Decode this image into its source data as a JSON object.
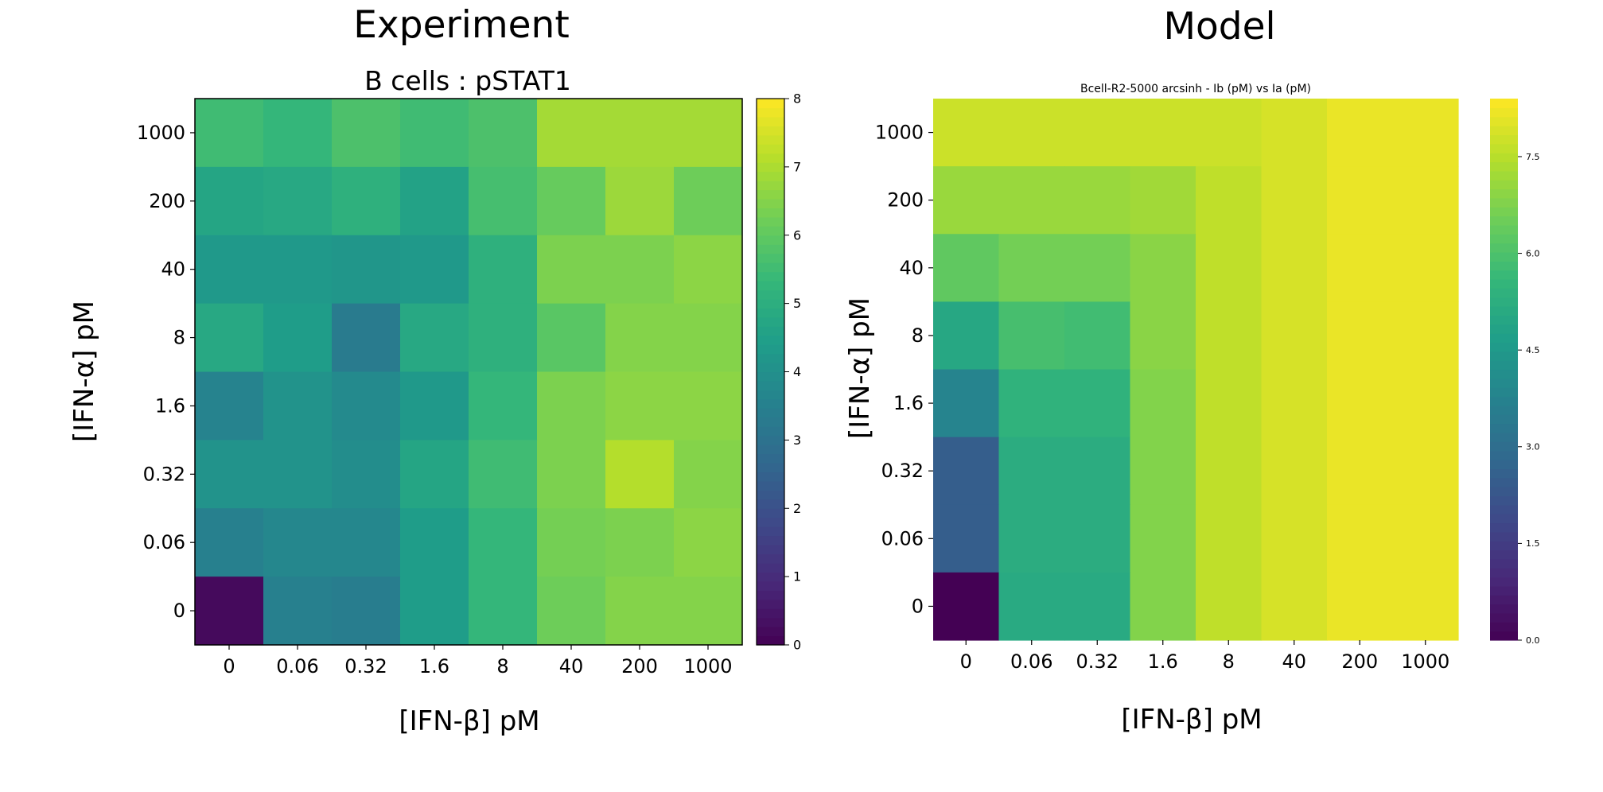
{
  "panels": [
    {
      "heading": "Experiment"
    },
    {
      "heading": "Model"
    }
  ],
  "colormap": "viridis",
  "chart_data": [
    {
      "type": "heatmap",
      "title": "B cells : pSTAT1",
      "xlabel": "[IFN-β] pM",
      "ylabel": "[IFN-α] pM",
      "x_categories": [
        "0",
        "0.06",
        "0.32",
        "1.6",
        "8",
        "40",
        "200",
        "1000"
      ],
      "y_categories": [
        "1000",
        "200",
        "40",
        "8",
        "1.6",
        "0.32",
        "0.06",
        "0"
      ],
      "values": [
        [
          5.5,
          5.3,
          5.7,
          5.5,
          5.7,
          6.9,
          6.9,
          6.9
        ],
        [
          4.7,
          4.8,
          5.1,
          4.6,
          5.6,
          6.1,
          6.8,
          6.2
        ],
        [
          4.3,
          4.3,
          4.2,
          4.3,
          5.1,
          6.4,
          6.4,
          6.6
        ],
        [
          4.8,
          4.4,
          3.3,
          4.8,
          5.1,
          5.9,
          6.5,
          6.5
        ],
        [
          3.6,
          4.1,
          3.8,
          4.3,
          5.3,
          6.4,
          6.6,
          6.6
        ],
        [
          4.1,
          4.1,
          3.9,
          4.7,
          5.5,
          6.4,
          7.1,
          6.5
        ],
        [
          3.5,
          3.7,
          3.7,
          4.4,
          5.3,
          6.3,
          6.4,
          6.6
        ],
        [
          0.2,
          3.5,
          3.4,
          4.4,
          5.3,
          6.2,
          6.5,
          6.5
        ]
      ],
      "colorbar": {
        "min": 0,
        "max": 8,
        "ticks": [
          "0",
          "1",
          "2",
          "3",
          "4",
          "5",
          "6",
          "7",
          "8"
        ]
      }
    },
    {
      "type": "heatmap",
      "title": "Bcell-R2-5000 arcsinh - Ib (pM) vs Ia (pM)",
      "xlabel": "[IFN-β] pM",
      "ylabel": "[IFN-α] pM",
      "x_categories": [
        "0",
        "0.06",
        "0.32",
        "1.6",
        "8",
        "40",
        "200",
        "1000"
      ],
      "y_categories": [
        "1000",
        "200",
        "40",
        "8",
        "1.6",
        "0.32",
        "0.06",
        "0"
      ],
      "values": [
        [
          7.75,
          7.75,
          7.75,
          7.75,
          7.75,
          7.9,
          8.15,
          8.15
        ],
        [
          7.1,
          7.1,
          7.1,
          7.2,
          7.6,
          7.9,
          8.15,
          8.15
        ],
        [
          6.3,
          6.6,
          6.6,
          6.9,
          7.6,
          7.9,
          8.15,
          8.15
        ],
        [
          5.0,
          5.9,
          5.8,
          6.9,
          7.6,
          7.9,
          8.15,
          8.15
        ],
        [
          3.8,
          5.4,
          5.4,
          6.8,
          7.6,
          7.9,
          8.15,
          8.15
        ],
        [
          2.5,
          5.2,
          5.2,
          6.8,
          7.6,
          7.9,
          8.15,
          8.15
        ],
        [
          2.5,
          5.2,
          5.2,
          6.8,
          7.6,
          7.9,
          8.15,
          8.15
        ],
        [
          0.0,
          5.1,
          5.1,
          6.8,
          7.6,
          7.9,
          8.15,
          8.15
        ]
      ],
      "colorbar": {
        "min": 0,
        "max": 8.4,
        "ticks": [
          "0.0",
          "1.5",
          "3.0",
          "4.5",
          "6.0",
          "7.5"
        ]
      }
    }
  ]
}
